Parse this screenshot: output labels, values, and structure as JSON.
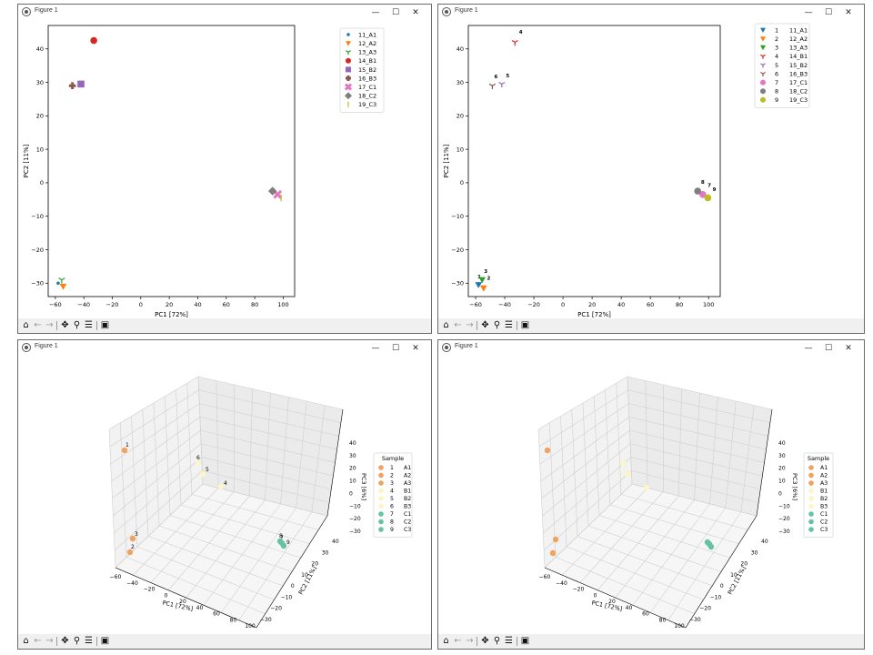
{
  "windows": [
    {
      "title": "Figure 1",
      "min": "—",
      "max": "☐",
      "close": "✕"
    },
    {
      "title": "Figure 1",
      "min": "—",
      "max": "☐",
      "close": "✕"
    },
    {
      "title": "Figure 1",
      "min": "—",
      "max": "☐",
      "close": "✕"
    },
    {
      "title": "Figure 1",
      "min": "—",
      "max": "☐",
      "close": "✕"
    }
  ],
  "toolbar": {
    "home": "home-icon",
    "back": "back-arrow-icon",
    "forward": "forward-arrow-icon",
    "pan": "pan-icon",
    "zoom": "zoom-icon",
    "subplots": "sliders-icon",
    "save": "save-icon"
  },
  "chart_data": [
    {
      "type": "scatter",
      "xlabel": "PC1 [72%]",
      "ylabel": "PC2 [11%]",
      "xlim": [
        -65,
        108
      ],
      "ylim": [
        -34,
        47
      ],
      "xticks": [
        "−60",
        "−40",
        "−20",
        "0",
        "20",
        "40",
        "60",
        "80",
        "100"
      ],
      "yticks": [
        "−30",
        "−20",
        "−10",
        "0",
        "10",
        "20",
        "30",
        "40"
      ],
      "legend_position": "top-right",
      "series": [
        {
          "name": "11_A1",
          "marker": "point",
          "color": "#1f77b4",
          "x": -58,
          "y": -30
        },
        {
          "name": "12_A2",
          "marker": "triangle-down",
          "color": "#ff7f0e",
          "x": -54.5,
          "y": -31
        },
        {
          "name": "13_A3",
          "marker": "tri-down",
          "color": "#2ca02c",
          "x": -55.5,
          "y": -29
        },
        {
          "name": "14_B1",
          "marker": "circle",
          "color": "#d62728",
          "x": -33,
          "y": 42.5
        },
        {
          "name": "15_B2",
          "marker": "square",
          "color": "#9467bd",
          "x": -42,
          "y": 29.5
        },
        {
          "name": "16_B3",
          "marker": "plus-filled",
          "color": "#8c564b",
          "x": -48,
          "y": 29
        },
        {
          "name": "17_C1",
          "marker": "x-filled",
          "color": "#e377c2",
          "x": 96,
          "y": -3.5
        },
        {
          "name": "18_C2",
          "marker": "diamond",
          "color": "#7f7f7f",
          "x": 92.5,
          "y": -2.5
        },
        {
          "name": "19_C3",
          "marker": "vline",
          "color": "#bcbd22",
          "x": 98.5,
          "y": -4.5
        }
      ]
    },
    {
      "type": "scatter",
      "xlabel": "PC1 [72%]",
      "ylabel": "PC2 [11%]",
      "xlim": [
        -65,
        108
      ],
      "ylim": [
        -34,
        47
      ],
      "xticks": [
        "−60",
        "−40",
        "−20",
        "0",
        "20",
        "40",
        "60",
        "80",
        "100"
      ],
      "yticks": [
        "−30",
        "−20",
        "−10",
        "0",
        "10",
        "20",
        "30",
        "40"
      ],
      "legend_position": "top-right",
      "series": [
        {
          "name": "11_A1",
          "num": "1",
          "marker": "triangle-down",
          "color": "#1f77b4",
          "x": -58,
          "y": -30.5,
          "label": "1",
          "lx": -57.5,
          "ly": -28.5
        },
        {
          "name": "12_A2",
          "num": "2",
          "marker": "triangle-down",
          "color": "#ff7f0e",
          "x": -54.5,
          "y": -31.5,
          "label": "2",
          "lx": -51,
          "ly": -29
        },
        {
          "name": "13_A3",
          "num": "3",
          "marker": "triangle-down",
          "color": "#2ca02c",
          "x": -55.5,
          "y": -29,
          "label": "3",
          "lx": -53,
          "ly": -27
        },
        {
          "name": "14_B1",
          "num": "4",
          "marker": "tri-down",
          "color": "#d62728",
          "x": -33,
          "y": 42,
          "label": "4",
          "lx": -29,
          "ly": 44.5
        },
        {
          "name": "15_B2",
          "num": "5",
          "marker": "tri-down",
          "color": "#9467bd",
          "x": -42,
          "y": 29.5,
          "label": "5",
          "lx": -38,
          "ly": 31.5
        },
        {
          "name": "16_B3",
          "num": "6",
          "marker": "tri-down",
          "color": "#8c564b",
          "x": -48.5,
          "y": 29,
          "label": "6",
          "lx": -46,
          "ly": 31.2
        },
        {
          "name": "17_C1",
          "num": "7",
          "marker": "circle",
          "color": "#e377c2",
          "x": 96,
          "y": -3.5,
          "label": "7",
          "lx": 100.5,
          "ly": -1.2
        },
        {
          "name": "18_C2",
          "num": "8",
          "marker": "circle",
          "color": "#7f7f7f",
          "x": 92.5,
          "y": -2.5,
          "label": "8",
          "lx": 96,
          "ly": -0.3
        },
        {
          "name": "19_C3",
          "num": "9",
          "marker": "circle",
          "color": "#bcbd22",
          "x": 99.5,
          "y": -4.5,
          "label": "9",
          "lx": 104,
          "ly": -2.5
        }
      ]
    },
    {
      "type": "scatter",
      "projection": "3d",
      "xlabel": "PC1 [72%]",
      "ylabel": "PC2 [11%]",
      "zlabel": "PC3 [6%]",
      "xticks": [
        "−60",
        "−40",
        "−20",
        "0",
        "20",
        "40",
        "60",
        "80",
        "100"
      ],
      "yticks": [
        "−30",
        "−20",
        "−10",
        "0",
        "10",
        "20",
        "30",
        "40"
      ],
      "zticks": [
        "−30",
        "−20",
        "−10",
        "0",
        "10",
        "20",
        "30",
        "40"
      ],
      "legend_title": "Sample",
      "legend_position": "right",
      "legend": [
        {
          "num": "1",
          "name": "A1",
          "color": "#f0a35e"
        },
        {
          "num": "2",
          "name": "A2",
          "color": "#f0a35e"
        },
        {
          "num": "3",
          "name": "A3",
          "color": "#f0a35e"
        },
        {
          "num": "4",
          "name": "B1",
          "color": "#fbf6c8"
        },
        {
          "num": "5",
          "name": "B2",
          "color": "#fbf6c8"
        },
        {
          "num": "6",
          "name": "B3",
          "color": "#fbf6c8"
        },
        {
          "num": "7",
          "name": "C1",
          "color": "#66c2a5"
        },
        {
          "num": "8",
          "name": "C2",
          "color": "#66c2a5"
        },
        {
          "num": "9",
          "name": "C3",
          "color": "#66c2a5"
        }
      ],
      "points": [
        {
          "label": "1",
          "color": "#f0a35e"
        },
        {
          "label": "2",
          "color": "#f0a35e"
        },
        {
          "label": "3",
          "color": "#f0a35e"
        },
        {
          "label": "4",
          "color": "#fbf6c8"
        },
        {
          "label": "5",
          "color": "#fbf6c8"
        },
        {
          "label": "6",
          "color": "#fbf6c8"
        },
        {
          "label": "7",
          "color": "#66c2a5"
        },
        {
          "label": "8",
          "color": "#66c2a5"
        },
        {
          "label": "9",
          "color": "#66c2a5"
        }
      ]
    },
    {
      "type": "scatter",
      "projection": "3d",
      "xlabel": "PC1 [72%]",
      "ylabel": "PC2 [11%]",
      "zlabel": "PC3 [6%]",
      "xticks": [
        "−60",
        "−40",
        "−20",
        "0",
        "20",
        "40",
        "60",
        "80",
        "100"
      ],
      "yticks": [
        "−30",
        "−20",
        "−10",
        "0",
        "10",
        "20",
        "30",
        "40"
      ],
      "zticks": [
        "−30",
        "−20",
        "−10",
        "0",
        "10",
        "20",
        "30",
        "40"
      ],
      "legend_title": "Sample",
      "legend_position": "right",
      "legend": [
        {
          "name": "A1",
          "color": "#f0a35e"
        },
        {
          "name": "A2",
          "color": "#f0a35e"
        },
        {
          "name": "A3",
          "color": "#f0a35e"
        },
        {
          "name": "B1",
          "color": "#fbf6c8"
        },
        {
          "name": "B2",
          "color": "#fbf6c8"
        },
        {
          "name": "B3",
          "color": "#fbf6c8"
        },
        {
          "name": "C1",
          "color": "#66c2a5"
        },
        {
          "name": "C2",
          "color": "#66c2a5"
        },
        {
          "name": "C3",
          "color": "#66c2a5"
        }
      ],
      "points": [
        {
          "color": "#f0a35e"
        },
        {
          "color": "#f0a35e"
        },
        {
          "color": "#f0a35e"
        },
        {
          "color": "#fbf6c8"
        },
        {
          "color": "#fbf6c8"
        },
        {
          "color": "#fbf6c8"
        },
        {
          "color": "#66c2a5"
        },
        {
          "color": "#66c2a5"
        },
        {
          "color": "#66c2a5"
        }
      ]
    }
  ]
}
